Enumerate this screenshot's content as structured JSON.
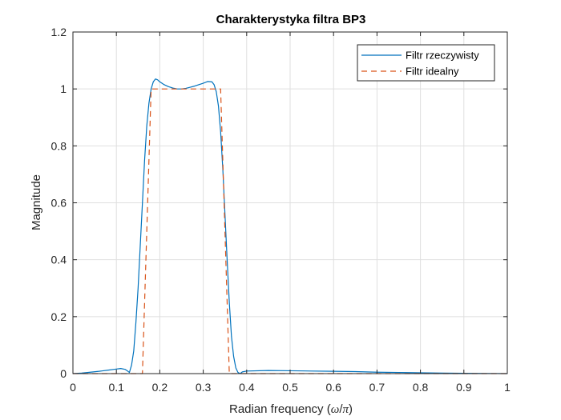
{
  "chart_data": {
    "type": "line",
    "title": "Charakterystyka filtra BP3",
    "xlabel": "Radian frequency (ω/π)",
    "xlabel_parts": {
      "prefix": "Radian frequency (",
      "omega": "ω",
      "slash": "/",
      "pi": "π",
      "suffix": ")"
    },
    "ylabel": "Magnitude",
    "xlim": [
      0,
      1
    ],
    "ylim": [
      0,
      1.2
    ],
    "xticks": [
      0,
      0.1,
      0.2,
      0.3,
      0.4,
      0.5,
      0.6,
      0.7,
      0.8,
      0.9,
      1
    ],
    "yticks": [
      0,
      0.2,
      0.4,
      0.6,
      0.8,
      1,
      1.2
    ],
    "xtick_labels": [
      "0",
      "0.1",
      "0.2",
      "0.3",
      "0.4",
      "0.5",
      "0.6",
      "0.7",
      "0.8",
      "0.9",
      "1"
    ],
    "ytick_labels": [
      "0",
      "0.2",
      "0.4",
      "0.6",
      "0.8",
      "1",
      "1.2"
    ],
    "grid": true,
    "legend_position": "top-right",
    "series": [
      {
        "name": "Filtr rzeczywisty",
        "color": "#0072BD",
        "style": "solid",
        "x": [
          0,
          0.02,
          0.04,
          0.06,
          0.08,
          0.1,
          0.11,
          0.12,
          0.125,
          0.13,
          0.135,
          0.14,
          0.145,
          0.15,
          0.155,
          0.16,
          0.165,
          0.17,
          0.175,
          0.18,
          0.185,
          0.19,
          0.195,
          0.2,
          0.21,
          0.22,
          0.23,
          0.24,
          0.25,
          0.26,
          0.27,
          0.28,
          0.29,
          0.3,
          0.31,
          0.32,
          0.325,
          0.33,
          0.335,
          0.34,
          0.345,
          0.35,
          0.355,
          0.36,
          0.365,
          0.37,
          0.375,
          0.38,
          0.385,
          0.39,
          0.4,
          0.45,
          0.5,
          0.55,
          0.6,
          0.65,
          0.7,
          0.75,
          0.8,
          0.85,
          0.9,
          0.95,
          1
        ],
        "y": [
          0,
          0.002,
          0.005,
          0.008,
          0.012,
          0.016,
          0.018,
          0.015,
          0.01,
          0.004,
          0.03,
          0.08,
          0.18,
          0.3,
          0.45,
          0.6,
          0.75,
          0.87,
          0.95,
          1.0,
          1.025,
          1.035,
          1.032,
          1.025,
          1.015,
          1.008,
          1.003,
          1.0,
          1.0,
          1.002,
          1.006,
          1.01,
          1.015,
          1.02,
          1.026,
          1.025,
          1.015,
          0.99,
          0.94,
          0.85,
          0.72,
          0.56,
          0.4,
          0.25,
          0.13,
          0.06,
          0.02,
          0.004,
          0.0,
          0.006,
          0.009,
          0.011,
          0.01,
          0.009,
          0.008,
          0.007,
          0.005,
          0.004,
          0.003,
          0.002,
          0.001,
          0.0005,
          0.0
        ]
      },
      {
        "name": "Filtr idealny",
        "color": "#D95319",
        "style": "dashed",
        "x": [
          0,
          0.16,
          0.18,
          0.34,
          0.36,
          1
        ],
        "y": [
          0,
          0,
          1,
          1,
          0,
          0
        ]
      }
    ]
  }
}
